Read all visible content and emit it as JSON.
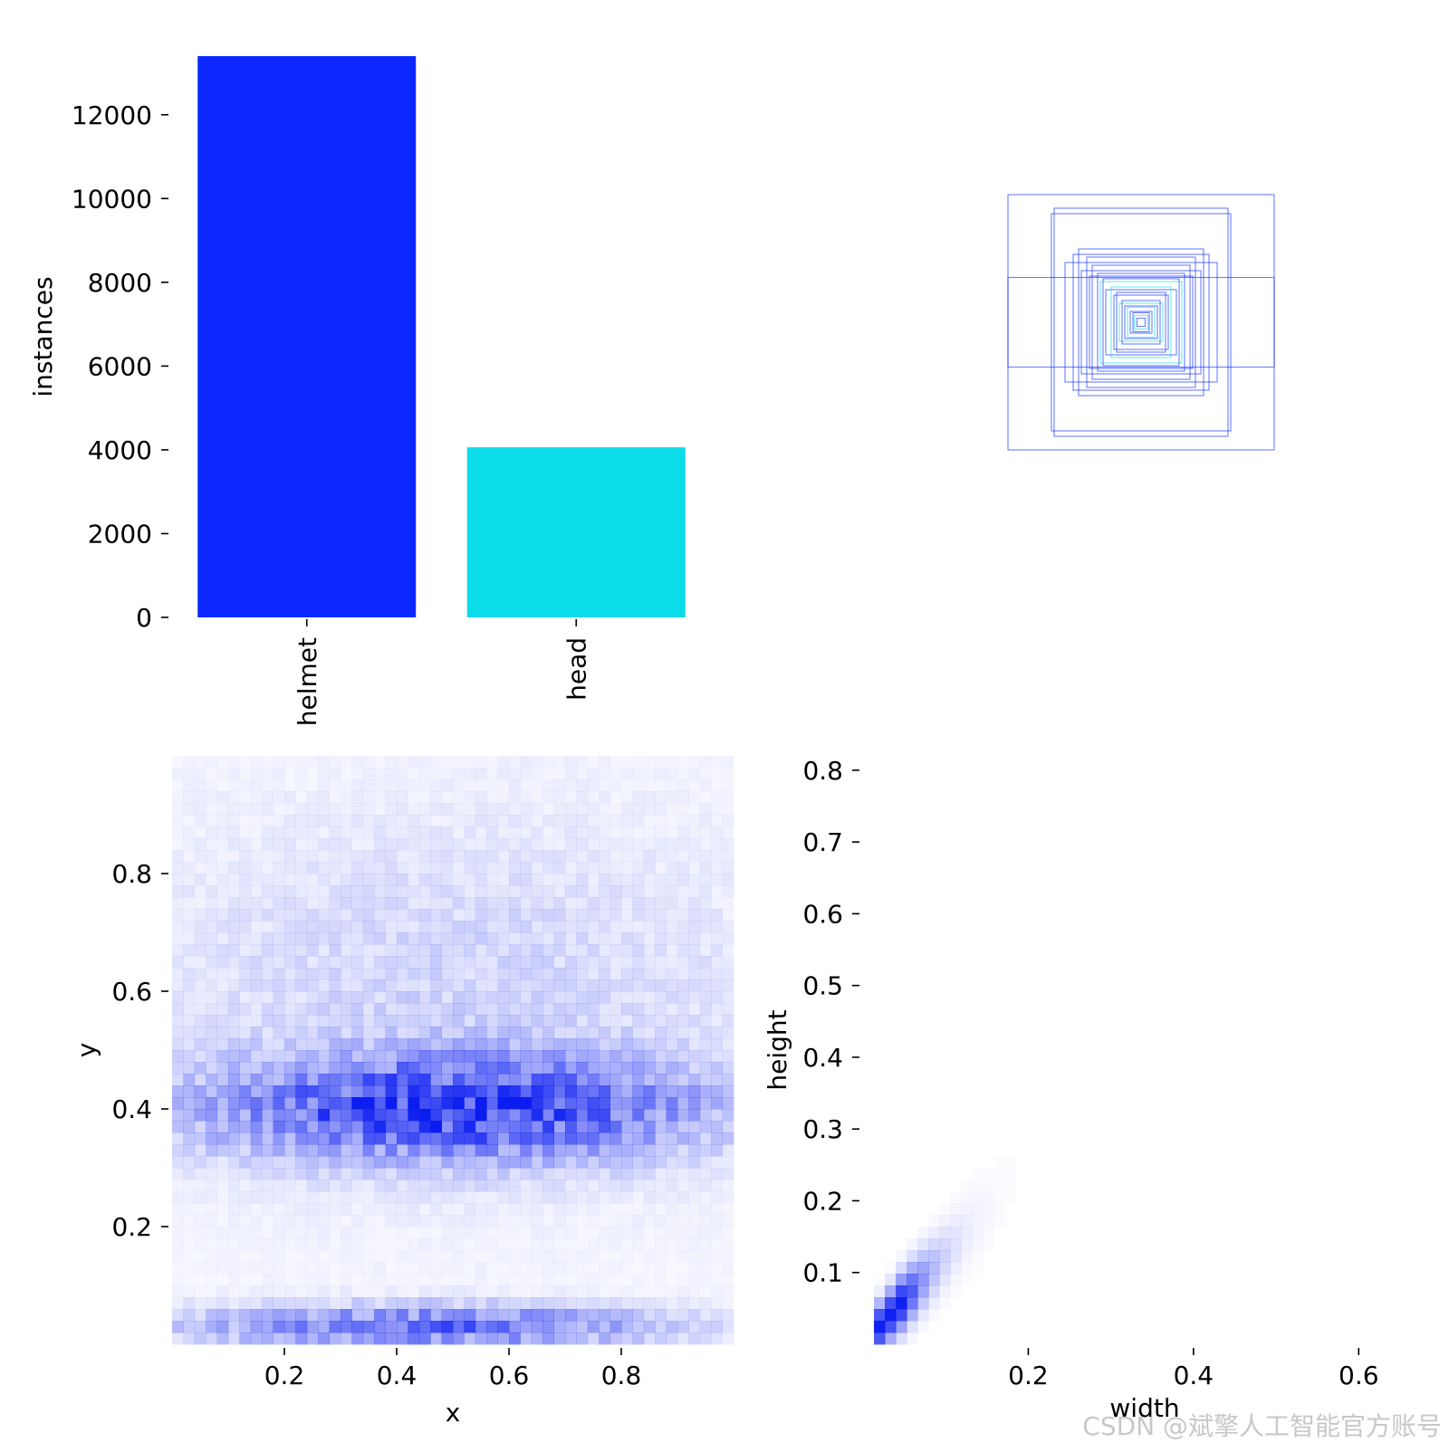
{
  "watermark": "CSDN @斌擎人工智能官方账号",
  "chart_data": [
    {
      "type": "bar",
      "title": "",
      "xlabel": "",
      "ylabel": "instances",
      "categories": [
        "helmet",
        "head"
      ],
      "values": [
        13400,
        4060
      ],
      "colors": [
        "#0a28ff",
        "#0cdce8"
      ],
      "ylim": [
        0,
        13400
      ],
      "yticks": [
        0,
        2000,
        4000,
        6000,
        8000,
        10000,
        12000
      ],
      "grid": false
    },
    {
      "type": "box-overlay",
      "title": "",
      "description_colors": [
        "#0a28ff",
        "#0cdce8"
      ],
      "boxes_wh": [
        [
          0.98,
          0.94
        ],
        [
          0.64,
          0.84
        ],
        [
          0.66,
          0.8
        ],
        [
          0.98,
          0.33
        ],
        [
          0.5,
          0.5
        ],
        [
          0.46,
          0.54
        ],
        [
          0.56,
          0.44
        ],
        [
          0.4,
          0.48
        ],
        [
          0.44,
          0.38
        ],
        [
          0.36,
          0.42
        ],
        [
          0.38,
          0.34
        ],
        [
          0.32,
          0.36
        ],
        [
          0.3,
          0.3
        ],
        [
          0.28,
          0.32
        ],
        [
          0.26,
          0.24
        ],
        [
          0.22,
          0.26
        ],
        [
          0.2,
          0.2
        ],
        [
          0.18,
          0.22
        ],
        [
          0.16,
          0.14
        ],
        [
          0.14,
          0.16
        ],
        [
          0.12,
          0.12
        ],
        [
          0.1,
          0.11
        ],
        [
          0.08,
          0.08
        ],
        [
          0.06,
          0.07
        ],
        [
          0.05,
          0.05
        ],
        [
          0.03,
          0.03
        ]
      ]
    },
    {
      "type": "heatmap",
      "title": "",
      "xlabel": "x",
      "ylabel": "y",
      "xlim": [
        0,
        1
      ],
      "ylim": [
        0,
        1
      ],
      "xticks": [
        0.2,
        0.4,
        0.6,
        0.8
      ],
      "yticks": [
        0.2,
        0.4,
        0.6,
        0.8
      ],
      "bins": 50,
      "color": "#0a1cf0",
      "density_components": [
        {
          "cx": 0.5,
          "cy": 0.4,
          "sx": 0.3,
          "sy": 0.06,
          "weight": 0.8
        },
        {
          "cx": 0.45,
          "cy": 0.03,
          "sx": 0.3,
          "sy": 0.025,
          "weight": 0.6
        },
        {
          "cx": 0.5,
          "cy": 0.6,
          "sx": 0.4,
          "sy": 0.2,
          "weight": 0.15
        }
      ]
    },
    {
      "type": "heatmap",
      "title": "",
      "xlabel": "width",
      "ylabel": "height",
      "xlim": [
        0,
        0.66
      ],
      "ylim": [
        0,
        0.82
      ],
      "xticks": [
        0.2,
        0.4,
        0.6
      ],
      "yticks": [
        0.1,
        0.2,
        0.3,
        0.4,
        0.5,
        0.6,
        0.7,
        0.8
      ],
      "bins": 50,
      "color": "#0a1cf0",
      "density_ridge": {
        "slope": 1.25,
        "start": 0.02,
        "end": 0.26,
        "peak": 0.05,
        "spread": 0.012
      }
    }
  ]
}
